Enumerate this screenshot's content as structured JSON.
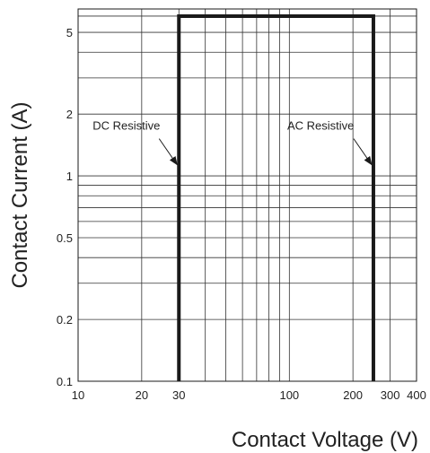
{
  "chart_data": {
    "type": "line",
    "title": "",
    "xlabel": "Contact Voltage (V)",
    "ylabel": "Contact Current (A)",
    "x_scale": "log",
    "y_scale": "log",
    "xlim": [
      10,
      400
    ],
    "ylim": [
      0.1,
      6.5
    ],
    "grid": true,
    "x_ticks": [
      {
        "value": 10,
        "label": "10"
      },
      {
        "value": 20,
        "label": "20"
      },
      {
        "value": 30,
        "label": "30"
      },
      {
        "value": 100,
        "label": "100"
      },
      {
        "value": 200,
        "label": "200"
      },
      {
        "value": 300,
        "label": "300"
      },
      {
        "value": 400,
        "label": "400"
      }
    ],
    "y_ticks": [
      {
        "value": 0.1,
        "label": "0.1"
      },
      {
        "value": 0.2,
        "label": "0.2"
      },
      {
        "value": 0.5,
        "label": "0.5"
      },
      {
        "value": 1,
        "label": "1"
      },
      {
        "value": 2,
        "label": "2"
      },
      {
        "value": 5,
        "label": "5"
      }
    ],
    "series": [
      {
        "x": [
          30,
          30,
          250,
          250
        ],
        "y": [
          0.1,
          6,
          6,
          0.1
        ],
        "color": "#1a1a1a"
      }
    ],
    "annotations": [
      {
        "text": "DC Resistive",
        "target": {
          "x": 30,
          "y": 1.1
        }
      },
      {
        "text": "AC Resistive",
        "target": {
          "x": 250,
          "y": 1.1
        }
      }
    ]
  }
}
